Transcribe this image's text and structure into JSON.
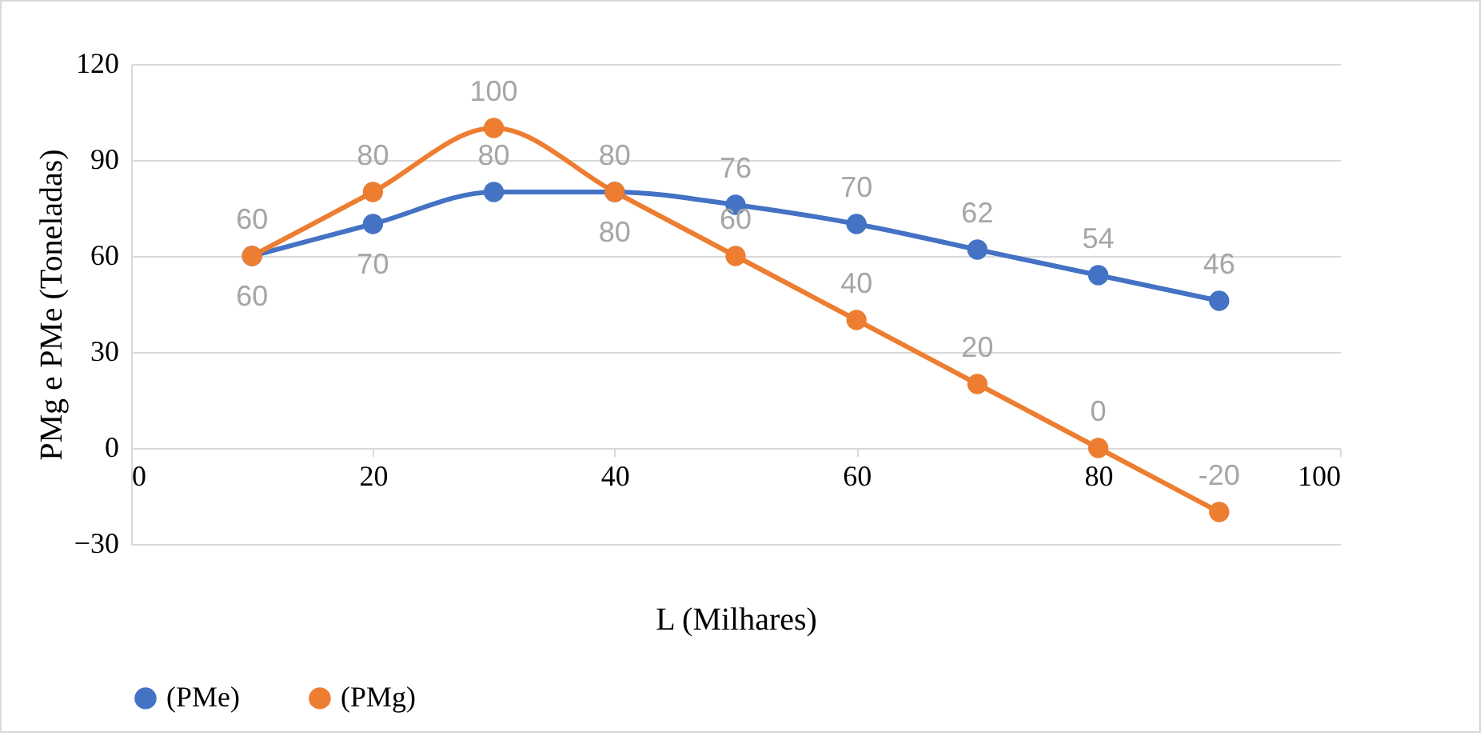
{
  "chart_data": {
    "type": "line",
    "xlabel": "L (Milhares)",
    "ylabel": "PMg e PMe (Toneladas)",
    "x": [
      10,
      20,
      30,
      40,
      50,
      60,
      70,
      80,
      90
    ],
    "series": [
      {
        "name": "(PMe)",
        "color": "#4472c4",
        "values": [
          60,
          70,
          80,
          80,
          76,
          70,
          62,
          54,
          46
        ]
      },
      {
        "name": "(PMg)",
        "color": "#ed7d31",
        "values": [
          60,
          80,
          100,
          80,
          60,
          40,
          20,
          0,
          -20
        ]
      }
    ],
    "xlim": [
      0,
      100
    ],
    "xticks": [
      0,
      20,
      40,
      60,
      80,
      100
    ],
    "ylim": [
      -30,
      120
    ],
    "yticks": [
      -30,
      0,
      30,
      60,
      90,
      120
    ],
    "grid": "y",
    "legend": "bottom",
    "marker": "circle",
    "line_style": "solid",
    "data_labels": true
  }
}
